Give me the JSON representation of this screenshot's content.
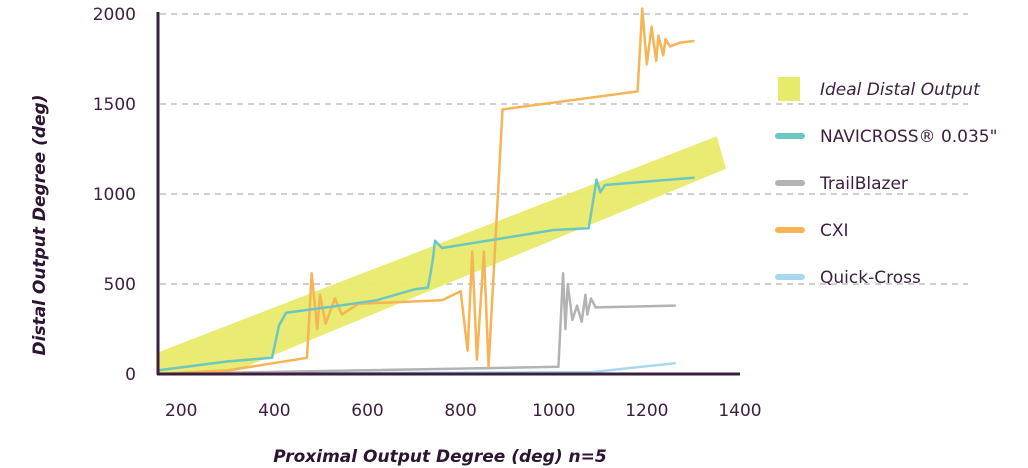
{
  "chart_data": {
    "type": "line",
    "title": "",
    "xlabel": "Proximal Output Degree (deg) n=5",
    "ylabel": "Distal Output Degree (deg)",
    "xlim": [
      150,
      1400
    ],
    "ylim": [
      0,
      2000
    ],
    "x_ticks": [
      200,
      400,
      600,
      800,
      1000,
      1200,
      1400
    ],
    "y_ticks": [
      0,
      500,
      1000,
      1500,
      2000
    ],
    "grid": "horizontal dashed",
    "legend_position": "right",
    "band": {
      "name": "Ideal Distal Output",
      "color": "#e8ea6a",
      "upper": [
        [
          150,
          120
        ],
        [
          1350,
          1320
        ],
        [
          1370,
          1140
        ]
      ],
      "lower": [
        [
          180,
          0
        ],
        [
          300,
          0
        ],
        [
          1370,
          1140
        ]
      ]
    },
    "series": [
      {
        "name": "NAVICROSS® 0.035\"",
        "color": "#6cc7c3",
        "points": [
          [
            150,
            20
          ],
          [
            300,
            70
          ],
          [
            395,
            90
          ],
          [
            410,
            270
          ],
          [
            425,
            340
          ],
          [
            540,
            380
          ],
          [
            620,
            410
          ],
          [
            700,
            470
          ],
          [
            730,
            480
          ],
          [
            740,
            630
          ],
          [
            745,
            740
          ],
          [
            760,
            700
          ],
          [
            1000,
            800
          ],
          [
            1075,
            810
          ],
          [
            1092,
            1080
          ],
          [
            1100,
            1010
          ],
          [
            1110,
            1050
          ],
          [
            1300,
            1090
          ]
        ]
      },
      {
        "name": "TrailBlazer",
        "color": "#b3b3b3",
        "points": [
          [
            150,
            0
          ],
          [
            1010,
            40
          ],
          [
            1020,
            560
          ],
          [
            1025,
            250
          ],
          [
            1030,
            500
          ],
          [
            1040,
            300
          ],
          [
            1050,
            380
          ],
          [
            1060,
            290
          ],
          [
            1068,
            440
          ],
          [
            1072,
            330
          ],
          [
            1080,
            420
          ],
          [
            1090,
            370
          ],
          [
            1260,
            380
          ]
        ]
      },
      {
        "name": "CXI",
        "color": "#f7b456",
        "points": [
          [
            150,
            0
          ],
          [
            300,
            20
          ],
          [
            470,
            90
          ],
          [
            480,
            560
          ],
          [
            492,
            250
          ],
          [
            498,
            440
          ],
          [
            510,
            280
          ],
          [
            530,
            420
          ],
          [
            545,
            330
          ],
          [
            580,
            390
          ],
          [
            760,
            410
          ],
          [
            800,
            460
          ],
          [
            815,
            130
          ],
          [
            825,
            680
          ],
          [
            835,
            80
          ],
          [
            850,
            680
          ],
          [
            860,
            40
          ],
          [
            890,
            1470
          ],
          [
            1180,
            1570
          ],
          [
            1190,
            2030
          ],
          [
            1200,
            1720
          ],
          [
            1210,
            1930
          ],
          [
            1220,
            1740
          ],
          [
            1225,
            1880
          ],
          [
            1235,
            1770
          ],
          [
            1240,
            1860
          ],
          [
            1250,
            1820
          ],
          [
            1270,
            1840
          ],
          [
            1300,
            1850
          ]
        ]
      },
      {
        "name": "Quick-Cross",
        "color": "#a8d8f0",
        "points": [
          [
            150,
            0
          ],
          [
            1000,
            10
          ],
          [
            1080,
            10
          ],
          [
            1260,
            60
          ]
        ]
      }
    ]
  }
}
